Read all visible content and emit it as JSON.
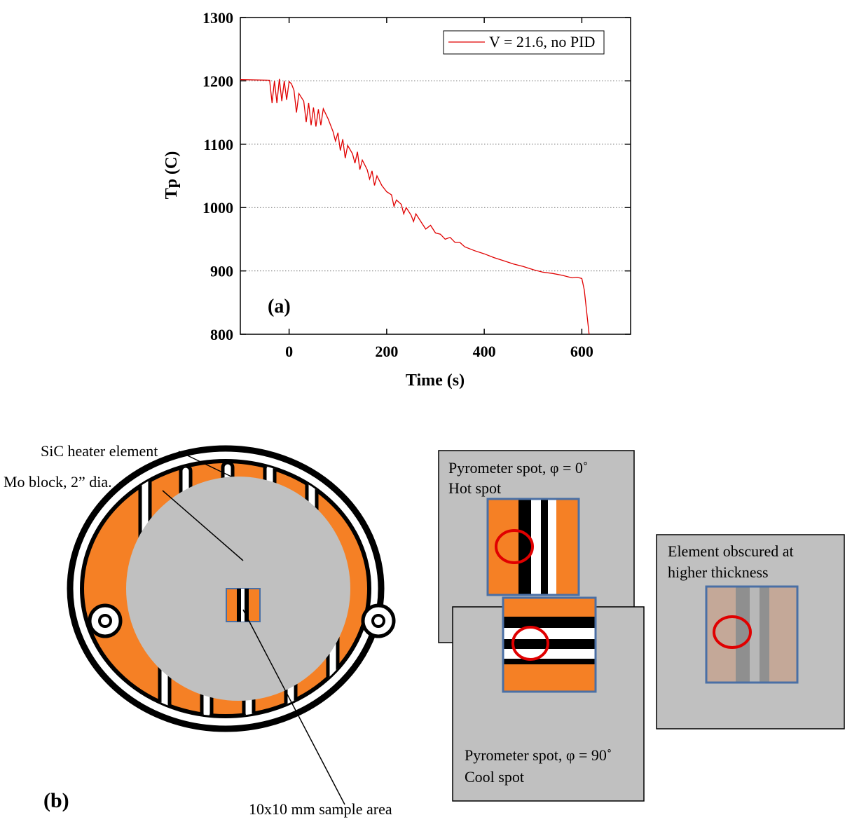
{
  "chart_data": {
    "type": "line",
    "x_label": "Time (s)",
    "y_label": "Tp (C)",
    "annotation": "(a)",
    "x": [
      -100,
      -40,
      -35,
      -30,
      -25,
      -20,
      -15,
      -10,
      -5,
      0,
      5,
      10,
      15,
      20,
      30,
      35,
      40,
      45,
      50,
      55,
      60,
      65,
      70,
      80,
      90,
      95,
      100,
      105,
      110,
      115,
      120,
      130,
      135,
      140,
      145,
      150,
      160,
      165,
      170,
      175,
      180,
      190,
      200,
      210,
      215,
      220,
      230,
      235,
      240,
      250,
      255,
      260,
      270,
      280,
      290,
      300,
      310,
      320,
      330,
      340,
      350,
      360,
      380,
      400,
      420,
      440,
      460,
      480,
      500,
      520,
      540,
      560,
      580,
      590,
      600,
      605,
      615
    ],
    "series": [
      {
        "name": "V = 21.6, no PID",
        "color": "#e00000",
        "values": [
          1202,
          1201,
          1165,
          1200,
          1165,
          1203,
          1168,
          1200,
          1170,
          1199,
          1195,
          1185,
          1150,
          1180,
          1168,
          1135,
          1165,
          1130,
          1158,
          1128,
          1155,
          1130,
          1156,
          1140,
          1120,
          1105,
          1118,
          1090,
          1108,
          1078,
          1098,
          1085,
          1070,
          1088,
          1060,
          1075,
          1060,
          1045,
          1058,
          1035,
          1050,
          1035,
          1025,
          1020,
          1002,
          1012,
          1005,
          990,
          1000,
          988,
          978,
          990,
          978,
          966,
          972,
          960,
          958,
          950,
          953,
          945,
          945,
          938,
          932,
          927,
          921,
          916,
          911,
          907,
          902,
          898,
          896,
          893,
          889,
          890,
          888,
          870,
          800
        ]
      }
    ],
    "xlim": [
      -100,
      700
    ],
    "xticks": [
      0,
      200,
      400,
      600
    ],
    "ylim": [
      800,
      1300
    ],
    "yticks": [
      800,
      900,
      1000,
      1100,
      1200,
      1300
    ],
    "grid": true,
    "legend_position": "upper right"
  },
  "diagram": {
    "panel_label": "(b)",
    "heater_label": "SiC heater element",
    "block_label": "Mo block, 2” dia.",
    "sample_label": "10x10 mm sample area",
    "hot_box": [
      "Pyrometer spot, φ = 0˚",
      "Hot spot"
    ],
    "cool_box": [
      "Pyrometer spot, φ = 90˚",
      "Cool spot"
    ],
    "obscured_box": [
      "Element obscured at",
      "higher thickness"
    ]
  }
}
